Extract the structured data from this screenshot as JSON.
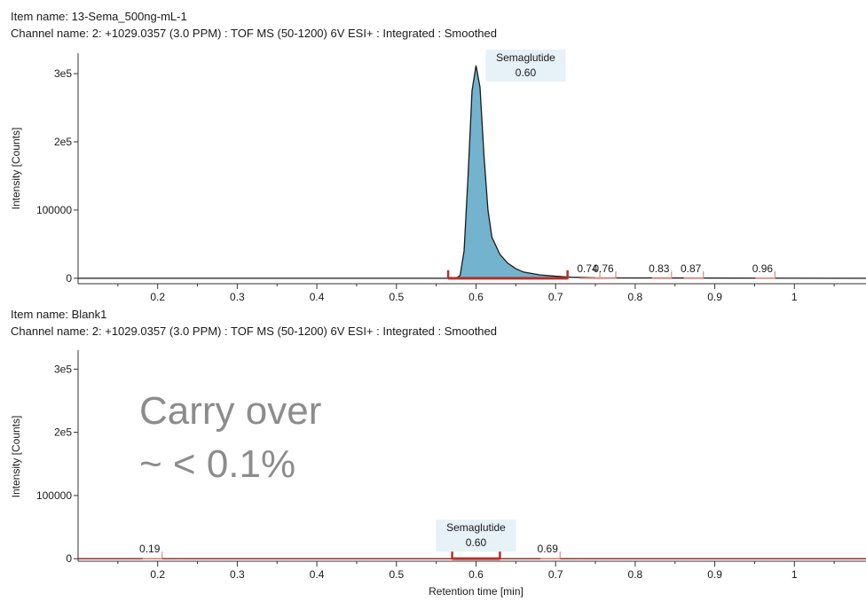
{
  "chart_data": [
    {
      "type": "line",
      "item_name": "Item name: 13-Sema_500ng-mL-1",
      "channel_name": "Channel name: 2: +1029.0357 (3.0 PPM) : TOF MS (50-1200) 6V ESI+ : Integrated : Smoothed",
      "ylabel": "Intensity [Counts]",
      "xlabel": "",
      "xlim": [
        0.1,
        1.09
      ],
      "ylim": [
        -8000,
        330000
      ],
      "x_ticks": [
        0.2,
        0.3,
        0.4,
        0.5,
        0.6,
        0.7,
        0.8,
        0.9,
        1
      ],
      "x_tick_labels": [
        "0.2",
        "0.3",
        "0.4",
        "0.5",
        "0.6",
        "0.7",
        "0.8",
        "0.9",
        "1"
      ],
      "y_ticks": [
        0,
        100000,
        200000,
        300000
      ],
      "y_tick_labels": [
        "0",
        "100000",
        "2e5",
        "3e5"
      ],
      "series": [
        {
          "x": [
            0.1,
            0.55,
            0.575,
            0.58,
            0.585,
            0.59,
            0.595,
            0.6,
            0.605,
            0.61,
            0.615,
            0.62,
            0.63,
            0.64,
            0.65,
            0.66,
            0.68,
            0.7,
            0.72,
            0.75,
            1.09
          ],
          "y": [
            0,
            0,
            0,
            4000,
            40000,
            150000,
            275000,
            312000,
            280000,
            180000,
            100000,
            60000,
            35000,
            22000,
            14000,
            9000,
            5000,
            3000,
            1500,
            500,
            0
          ]
        }
      ],
      "integrated_peak": {
        "start": 0.565,
        "end": 0.715
      },
      "peak_label": {
        "name": "Semaglutide",
        "rt": "0.60"
      },
      "minor_peaks": [
        {
          "label": "0.74",
          "x": 0.74
        },
        {
          "label": "0.76",
          "x": 0.76
        },
        {
          "label": "0.83",
          "x": 0.83
        },
        {
          "label": "0.87",
          "x": 0.87
        },
        {
          "label": "0.96",
          "x": 0.96
        }
      ]
    },
    {
      "type": "line",
      "item_name": "Item name: Blank1",
      "channel_name": "Channel name: 2: +1029.0357 (3.0 PPM) : TOF MS (50-1200) 6V ESI+ : Integrated : Smoothed",
      "ylabel": "Intensity [Counts]",
      "xlabel": "Retention time [min]",
      "xlim": [
        0.1,
        1.09
      ],
      "ylim": [
        -4000,
        330000
      ],
      "x_ticks": [
        0.2,
        0.3,
        0.4,
        0.5,
        0.6,
        0.7,
        0.8,
        0.9,
        1
      ],
      "x_tick_labels": [
        "0.2",
        "0.3",
        "0.4",
        "0.5",
        "0.6",
        "0.7",
        "0.8",
        "0.9",
        "1"
      ],
      "y_ticks": [
        0,
        100000,
        200000,
        300000
      ],
      "y_tick_labels": [
        "0",
        "100000",
        "2e5",
        "3e5"
      ],
      "series": [
        {
          "x": [
            0.1,
            0.3,
            0.5,
            0.6,
            0.8,
            1.09
          ],
          "y": [
            0,
            0,
            0,
            0,
            0,
            0
          ]
        }
      ],
      "integrated_peak": {
        "start": 0.57,
        "end": 0.63
      },
      "peak_label": {
        "name": "Semaglutide",
        "rt": "0.60"
      },
      "minor_peaks": [
        {
          "label": "0.19",
          "x": 0.19
        },
        {
          "label": "0.69",
          "x": 0.69
        }
      ],
      "annotation": [
        "Carry over",
        "~ < 0.1%"
      ]
    }
  ],
  "colors": {
    "peak_fill": "#5aa6c4",
    "trace": "#1a1a1a",
    "integration": "#b5312c",
    "minor_peak": "#e08a86",
    "peak_label_bg": "#e6f1f8",
    "annotation": "#8c8c8c"
  }
}
